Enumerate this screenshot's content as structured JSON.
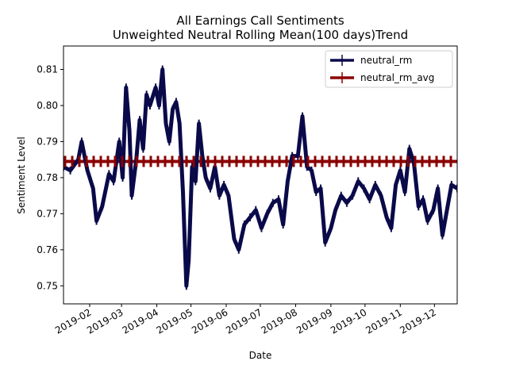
{
  "chart_data": {
    "type": "line",
    "title": "All Earnings Call Sentiments",
    "subtitle": "Unweighted Neutral Rolling Mean(100 days)Trend",
    "xlabel": "Date",
    "ylabel": "Sentiment Level",
    "xlim": [
      "2019-01-09",
      "2019-12-21"
    ],
    "ylim": [
      0.745,
      0.8165
    ],
    "x_ticks": [
      "2019-02",
      "2019-03",
      "2019-04",
      "2019-05",
      "2019-06",
      "2019-07",
      "2019-08",
      "2019-09",
      "2019-10",
      "2019-11",
      "2019-12"
    ],
    "y_ticks": [
      0.75,
      0.76,
      0.77,
      0.78,
      0.79,
      0.8,
      0.81
    ],
    "y_tick_labels": [
      "0.75",
      "0.76",
      "0.77",
      "0.78",
      "0.79",
      "0.80",
      "0.81"
    ],
    "grid": false,
    "legend_position": "top-right",
    "series": [
      {
        "name": "neutral_rm",
        "color": "#0a0a4a",
        "points": [
          [
            "2019-01-09",
            0.783
          ],
          [
            "2019-01-15",
            0.782
          ],
          [
            "2019-01-22",
            0.785
          ],
          [
            "2019-01-25",
            0.79
          ],
          [
            "2019-01-30",
            0.782
          ],
          [
            "2019-02-04",
            0.777
          ],
          [
            "2019-02-07",
            0.768
          ],
          [
            "2019-02-12",
            0.772
          ],
          [
            "2019-02-18",
            0.781
          ],
          [
            "2019-02-22",
            0.779
          ],
          [
            "2019-02-27",
            0.79
          ],
          [
            "2019-03-02",
            0.78
          ],
          [
            "2019-03-05",
            0.805
          ],
          [
            "2019-03-08",
            0.793
          ],
          [
            "2019-03-10",
            0.775
          ],
          [
            "2019-03-14",
            0.785
          ],
          [
            "2019-03-17",
            0.796
          ],
          [
            "2019-03-20",
            0.788
          ],
          [
            "2019-03-23",
            0.803
          ],
          [
            "2019-03-26",
            0.8
          ],
          [
            "2019-03-31",
            0.805
          ],
          [
            "2019-04-03",
            0.8
          ],
          [
            "2019-04-06",
            0.81
          ],
          [
            "2019-04-09",
            0.795
          ],
          [
            "2019-04-12",
            0.79
          ],
          [
            "2019-04-15",
            0.799
          ],
          [
            "2019-04-18",
            0.801
          ],
          [
            "2019-04-21",
            0.795
          ],
          [
            "2019-04-24",
            0.776
          ],
          [
            "2019-04-27",
            0.75
          ],
          [
            "2019-04-29",
            0.757
          ],
          [
            "2019-05-02",
            0.783
          ],
          [
            "2019-05-05",
            0.779
          ],
          [
            "2019-05-08",
            0.795
          ],
          [
            "2019-05-11",
            0.786
          ],
          [
            "2019-05-14",
            0.78
          ],
          [
            "2019-05-18",
            0.777
          ],
          [
            "2019-05-22",
            0.783
          ],
          [
            "2019-05-26",
            0.775
          ],
          [
            "2019-05-30",
            0.778
          ],
          [
            "2019-06-03",
            0.775
          ],
          [
            "2019-06-08",
            0.763
          ],
          [
            "2019-06-12",
            0.76
          ],
          [
            "2019-06-17",
            0.767
          ],
          [
            "2019-06-22",
            0.769
          ],
          [
            "2019-06-27",
            0.771
          ],
          [
            "2019-07-02",
            0.766
          ],
          [
            "2019-07-07",
            0.77
          ],
          [
            "2019-07-12",
            0.773
          ],
          [
            "2019-07-17",
            0.774
          ],
          [
            "2019-07-21",
            0.767
          ],
          [
            "2019-07-25",
            0.779
          ],
          [
            "2019-07-29",
            0.786
          ],
          [
            "2019-08-03",
            0.786
          ],
          [
            "2019-08-07",
            0.797
          ],
          [
            "2019-08-11",
            0.783
          ],
          [
            "2019-08-15",
            0.782
          ],
          [
            "2019-08-19",
            0.776
          ],
          [
            "2019-08-23",
            0.777
          ],
          [
            "2019-08-27",
            0.762
          ],
          [
            "2019-09-01",
            0.766
          ],
          [
            "2019-09-05",
            0.771
          ],
          [
            "2019-09-10",
            0.775
          ],
          [
            "2019-09-15",
            0.773
          ],
          [
            "2019-09-20",
            0.775
          ],
          [
            "2019-09-25",
            0.779
          ],
          [
            "2019-09-30",
            0.777
          ],
          [
            "2019-10-05",
            0.774
          ],
          [
            "2019-10-10",
            0.778
          ],
          [
            "2019-10-15",
            0.775
          ],
          [
            "2019-10-20",
            0.769
          ],
          [
            "2019-10-24",
            0.766
          ],
          [
            "2019-10-28",
            0.778
          ],
          [
            "2019-11-01",
            0.782
          ],
          [
            "2019-11-05",
            0.776
          ],
          [
            "2019-11-09",
            0.788
          ],
          [
            "2019-11-13",
            0.784
          ],
          [
            "2019-11-17",
            0.772
          ],
          [
            "2019-11-21",
            0.774
          ],
          [
            "2019-11-25",
            0.768
          ],
          [
            "2019-11-30",
            0.771
          ],
          [
            "2019-12-04",
            0.777
          ],
          [
            "2019-12-08",
            0.764
          ],
          [
            "2019-12-12",
            0.771
          ],
          [
            "2019-12-16",
            0.778
          ],
          [
            "2019-12-21",
            0.777
          ]
        ]
      },
      {
        "name": "neutral_rm_avg",
        "color": "#8b0000",
        "points": [
          [
            "2019-01-09",
            0.7845
          ],
          [
            "2019-12-21",
            0.7845
          ]
        ]
      }
    ]
  }
}
